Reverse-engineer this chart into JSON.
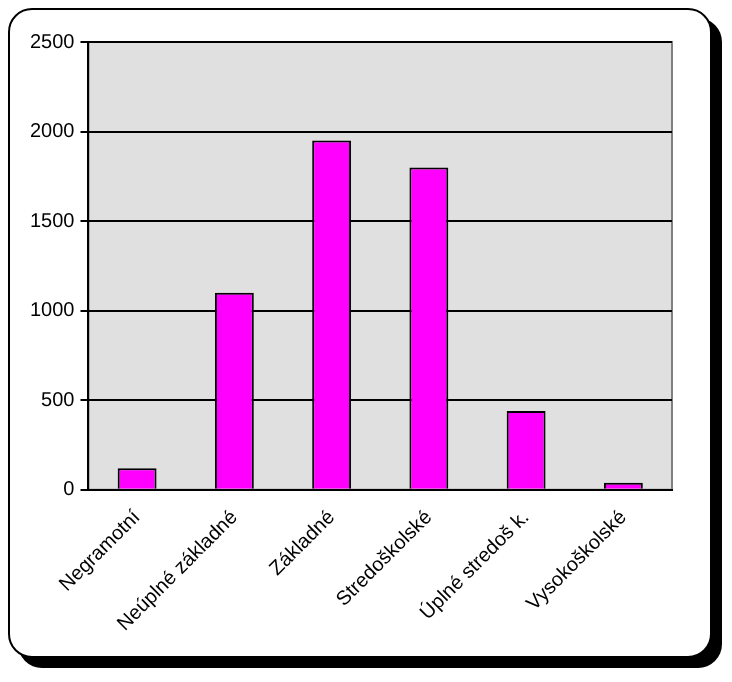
{
  "chart_data": {
    "type": "bar",
    "categories": [
      "Negramotní",
      "Neúplné základné",
      "Základné",
      "Stredoškolské",
      "Úplné stredoš k.",
      "Vysokoškolské"
    ],
    "values": [
      120,
      1100,
      1950,
      1800,
      440,
      40
    ],
    "color": "#ff00ff",
    "ylim": [
      0,
      2500
    ],
    "yticks": [
      0,
      500,
      1000,
      1500,
      2000,
      2500
    ],
    "grid": "y"
  }
}
